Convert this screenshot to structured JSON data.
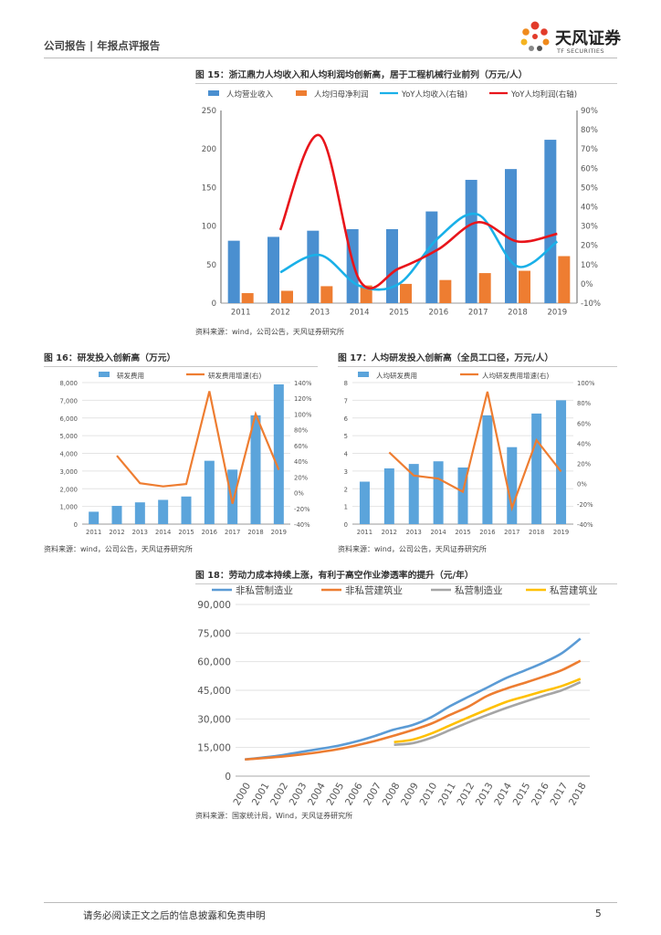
{
  "header": {
    "left_text": "公司报告 | 年报点评报告",
    "logo_cn": "天风证券",
    "logo_en": "TF SECURITIES"
  },
  "figure15": {
    "title": "图 15：浙江鼎力人均收入和人均利润均创新高，居于工程机械行业前列（万元/人）",
    "source": "资料来源：wind，公司公告，天风证券研究所"
  },
  "figure16": {
    "title": "图 16：研发投入创新高（万元）",
    "source": "资料来源：wind，公司公告，天风证券研究所"
  },
  "figure17": {
    "title": "图 17：人均研发投入创新高（全员工口径，万元/人）",
    "source": "资料来源：wind，公司公告，天风证券研究所"
  },
  "figure18": {
    "title": "图 18：劳动力成本持续上涨，有利于高空作业渗透率的提升（元/年）",
    "source": "资料来源：国家统计局，Wind，天风证券研究所"
  },
  "footer": {
    "disclaimer": "请务必阅读正文之后的信息披露和免责申明",
    "page": "5"
  },
  "chart_data": [
    {
      "id": "fig15",
      "type": "bar",
      "categories": [
        "2011",
        "2012",
        "2013",
        "2014",
        "2015",
        "2016",
        "2017",
        "2018",
        "2019"
      ],
      "series": [
        {
          "name": "人均营业收入",
          "kind": "bar",
          "axis": "left",
          "color": "#4a8fd0",
          "values": [
            81,
            86,
            94,
            96,
            96,
            119,
            160,
            174,
            212
          ]
        },
        {
          "name": "人均归母净利润",
          "kind": "bar",
          "axis": "left",
          "color": "#ee7d31",
          "values": [
            13,
            16,
            22,
            23,
            25,
            30,
            39,
            42,
            61
          ]
        },
        {
          "name": "YoY人均收入(右轴)",
          "kind": "line",
          "axis": "right",
          "color": "#1ab0e8",
          "values": [
            null,
            6,
            15,
            -1,
            0,
            24,
            36,
            9,
            22
          ]
        },
        {
          "name": "YoY人均利润(右轴)",
          "kind": "line",
          "axis": "right",
          "color": "#e8151b",
          "values": [
            null,
            28,
            77,
            2,
            8,
            18,
            32,
            22,
            26
          ]
        }
      ],
      "ylim": [
        0,
        250
      ],
      "yticks": [
        "0",
        "50",
        "100",
        "150",
        "200",
        "250"
      ],
      "y2lim": [
        -10,
        90
      ],
      "y2ticks": [
        "-10%",
        "0%",
        "10%",
        "20%",
        "30%",
        "40%",
        "50%",
        "60%",
        "70%",
        "80%",
        "90%"
      ],
      "legend": "top"
    },
    {
      "id": "fig16",
      "type": "bar",
      "categories": [
        "2011",
        "2012",
        "2013",
        "2014",
        "2015",
        "2016",
        "2017",
        "2018",
        "2019"
      ],
      "series": [
        {
          "name": "研发费用",
          "kind": "bar",
          "axis": "left",
          "color": "#5ba4db",
          "values": [
            700,
            1030,
            1230,
            1370,
            1560,
            3580,
            3080,
            6150,
            7900
          ]
        },
        {
          "name": "研发费用增速(右)",
          "kind": "line",
          "axis": "right",
          "color": "#ee7d31",
          "values": [
            null,
            47,
            12,
            8,
            11,
            129,
            -14,
            100,
            29
          ]
        }
      ],
      "ylim": [
        0,
        8000
      ],
      "yticks": [
        "0",
        "1,000",
        "2,000",
        "3,000",
        "4,000",
        "5,000",
        "6,000",
        "7,000",
        "8,000"
      ],
      "y2lim": [
        -40,
        140
      ],
      "y2ticks": [
        "-40%",
        "-20%",
        "0%",
        "20%",
        "40%",
        "60%",
        "80%",
        "100%",
        "120%",
        "140%"
      ],
      "legend": "top"
    },
    {
      "id": "fig17",
      "type": "bar",
      "categories": [
        "2011",
        "2012",
        "2013",
        "2014",
        "2015",
        "2016",
        "2017",
        "2018",
        "2019"
      ],
      "series": [
        {
          "name": "人均研发费用",
          "kind": "bar",
          "axis": "left",
          "color": "#5ba4db",
          "values": [
            2.4,
            3.15,
            3.4,
            3.55,
            3.2,
            6.15,
            4.35,
            6.25,
            7.0
          ]
        },
        {
          "name": "人均研发费用增速(右)",
          "kind": "line",
          "axis": "right",
          "color": "#ee7d31",
          "values": [
            null,
            31,
            8,
            5,
            -8,
            91,
            -24,
            43,
            12
          ]
        }
      ],
      "ylim": [
        0,
        8
      ],
      "yticks": [
        "0",
        "1",
        "2",
        "3",
        "4",
        "5",
        "6",
        "7",
        "8"
      ],
      "y2lim": [
        -40,
        100
      ],
      "y2ticks": [
        "-40%",
        "-20%",
        "0%",
        "20%",
        "40%",
        "60%",
        "80%",
        "100%"
      ],
      "legend": "top"
    },
    {
      "id": "fig18",
      "type": "line",
      "categories": [
        "2000",
        "2001",
        "2002",
        "2003",
        "2004",
        "2005",
        "2006",
        "2007",
        "2008",
        "2009",
        "2010",
        "2011",
        "2012",
        "2013",
        "2014",
        "2015",
        "2016",
        "2017",
        "2018"
      ],
      "series": [
        {
          "name": "非私营制造业",
          "color": "#5b9bd5",
          "values": [
            8750,
            9774,
            11001,
            12671,
            14251,
            15934,
            18225,
            21144,
            24404,
            26810,
            30916,
            36665,
            41650,
            46431,
            51369,
            55324,
            59470,
            64452,
            72088
          ]
        },
        {
          "name": "非私营建筑业",
          "color": "#ed7d31",
          "values": [
            8735,
            9484,
            10279,
            11328,
            12578,
            14112,
            16164,
            18482,
            21223,
            24161,
            27529,
            32103,
            36483,
            42072,
            45804,
            48886,
            52082,
            55568,
            60501
          ]
        },
        {
          "name": "私营制造业",
          "color": "#a5a5a5",
          "values": [
            null,
            null,
            null,
            null,
            null,
            null,
            null,
            null,
            16445,
            17260,
            20090,
            24138,
            28215,
            32035,
            35653,
            38948,
            42076,
            44991,
            49275
          ]
        },
        {
          "name": "私营建筑业",
          "color": "#ffc000",
          "values": [
            null,
            null,
            null,
            null,
            null,
            null,
            null,
            null,
            17840,
            19142,
            22336,
            26592,
            30821,
            34940,
            38854,
            41717,
            44532,
            47251,
            50974
          ]
        }
      ],
      "ylim": [
        0,
        90000
      ],
      "yticks": [
        "0",
        "15,000",
        "30,000",
        "45,000",
        "60,000",
        "75,000",
        "90,000"
      ],
      "legend": "top"
    }
  ]
}
